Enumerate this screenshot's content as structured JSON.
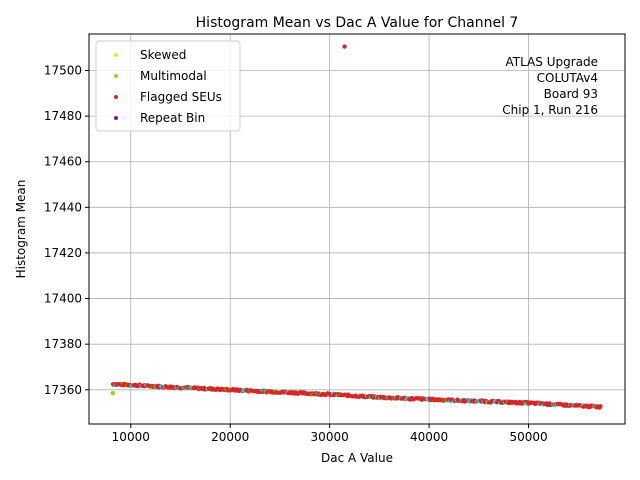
{
  "chart_data": {
    "type": "scatter",
    "title": "Histogram Mean vs Dac A Value for Channel 7",
    "xlabel": "Dac A Value",
    "ylabel": "Histogram Mean",
    "xlim": [
      5800,
      59700
    ],
    "ylim": [
      17345,
      17516
    ],
    "xticks": [
      10000,
      20000,
      30000,
      40000,
      50000
    ],
    "yticks": [
      17360,
      17380,
      17400,
      17420,
      17440,
      17460,
      17480,
      17500
    ],
    "grid": true,
    "legend_placement": "top-left",
    "annotation": [
      "ATLAS Upgrade",
      "COLUTAv4",
      "Board 93",
      "Chip 1, Run 216"
    ],
    "series": [
      {
        "name": "Skewed",
        "color": "#e8e81a",
        "points": []
      },
      {
        "name": "Multimodal",
        "color": "#8cd91e",
        "points": [
          [
            8200,
            17358.5
          ]
        ]
      },
      {
        "name": "Flagged SEUs",
        "color": "#d62728",
        "points": [
          [
            31500,
            17510.5
          ]
        ]
      },
      {
        "name": "Repeat Bin",
        "color": "#7b1c8c",
        "points": []
      }
    ],
    "band": {
      "description_points": [
        [
          8200,
          17362.5
        ],
        [
          10000,
          17362.1
        ],
        [
          15000,
          17361.0
        ],
        [
          20000,
          17360.0
        ],
        [
          25000,
          17359.0
        ],
        [
          30000,
          17358.0
        ],
        [
          35000,
          17356.7
        ],
        [
          40000,
          17355.8
        ],
        [
          45000,
          17355.0
        ],
        [
          50000,
          17354.2
        ],
        [
          55000,
          17353.0
        ],
        [
          57300,
          17352.5
        ]
      ],
      "colors": [
        "#d62728",
        "#1fd6d6",
        "#8c8c1a"
      ]
    }
  }
}
